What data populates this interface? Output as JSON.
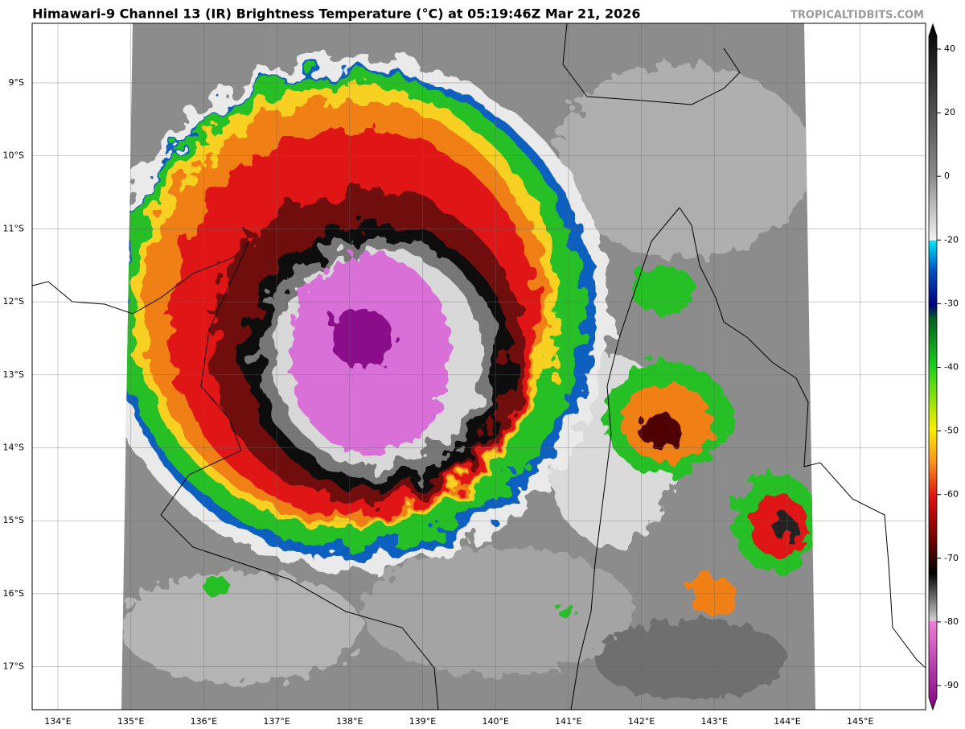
{
  "header": {
    "title": "Himawari-9 Channel 13 (IR) Brightness Temperature (°C) at 05:19:46Z Mar 21, 2026",
    "watermark": "TROPICALTIDBITS.COM"
  },
  "map": {
    "latitude_labels": [
      "9°S",
      "10°S",
      "11°S",
      "12°S",
      "13°S",
      "14°S",
      "15°S",
      "16°S",
      "17°S"
    ],
    "longitude_labels": [
      "134°E",
      "135°E",
      "136°E",
      "137°E",
      "138°E",
      "139°E",
      "140°E",
      "141°E",
      "142°E",
      "143°E",
      "144°E",
      "145°E"
    ]
  },
  "colorbar": {
    "ticks": [
      40,
      20,
      0,
      -20,
      -30,
      -40,
      -50,
      -60,
      -70,
      -80,
      -90
    ]
  }
}
